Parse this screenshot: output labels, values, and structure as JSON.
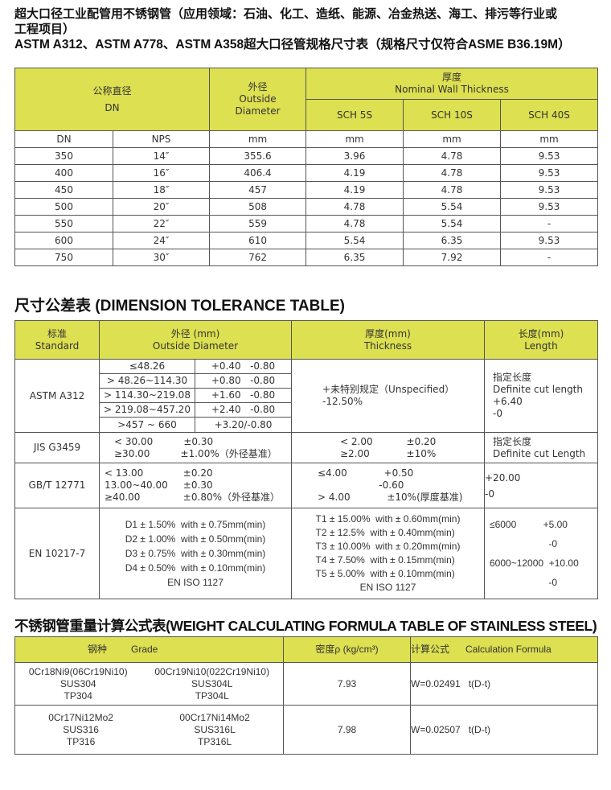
{
  "title": {
    "line1": "超大口径工业配管用不锈钢管（应用领域：石油、化工、造纸、能源、冶金热送、海工、排污等行业或",
    "line2": "工程项目）",
    "line3": "ASTM A312、ASTM A778、ASTM A358超大口径管规格尺寸表（规格尺寸仅符合ASME B36.19M）"
  },
  "colors": {
    "header_bg": "#dde050"
  },
  "spec_table": {
    "h_dn_cn": "公称直径",
    "h_dn": "DN",
    "h_od_cn": "外径",
    "h_od1": "Outside",
    "h_od2": "Diameter",
    "h_wall_cn": "厚度",
    "h_wall": "Nominal Wall Thickness",
    "sch": [
      "SCH 5S",
      "SCH 10S",
      "SCH 40S"
    ],
    "units": [
      "DN",
      "NPS",
      "mm",
      "mm",
      "mm",
      "mm"
    ],
    "rows": [
      [
        "350",
        "14″",
        "355.6",
        "3.96",
        "4.78",
        "9.53"
      ],
      [
        "400",
        "16″",
        "406.4",
        "4.19",
        "4.78",
        "9.53"
      ],
      [
        "450",
        "18″",
        "457",
        "4.19",
        "4.78",
        "9.53"
      ],
      [
        "500",
        "20″",
        "508",
        "4.78",
        "5.54",
        "9.53"
      ],
      [
        "550",
        "22″",
        "559",
        "4.78",
        "5.54",
        "-"
      ],
      [
        "600",
        "24″",
        "610",
        "5.54",
        "6.35",
        "9.53"
      ],
      [
        "750",
        "30″",
        "762",
        "6.35",
        "7.92",
        "-"
      ]
    ]
  },
  "tol": {
    "title": "尺寸公差表 (DIMENSION TOLERANCE TABLE)",
    "h": [
      [
        "标准",
        "Standard"
      ],
      [
        "外径 (mm)",
        "Outside Diameter"
      ],
      [
        "厚度(mm)",
        "Thickness"
      ],
      [
        "长度(mm)",
        "Length"
      ]
    ],
    "astm": {
      "name": "ASTM A312",
      "od": [
        [
          "≤48.26",
          "+0.40   -0.80"
        ],
        [
          "> 48.26~114.30",
          "+0.80   -0.80"
        ],
        [
          "> 114.30~219.08",
          "+1.60   -0.80"
        ],
        [
          "> 219.08~457.20",
          "+2.40   -0.80"
        ]
      ],
      "od_last": ">457 ~ 660",
      "od_last_tol": "+3.20/-0.80",
      "thk": "+未特别规定（Unspecified）\n-12.50%",
      "len": "指定长度\nDefinite cut length\n+6.40\n-0"
    },
    "jis": {
      "name": "JIS  G3459",
      "od": "< 30.00          ±0.30\n≥30.00          ±1.00%（外径基准）",
      "thk": "< 2.00           ±0.20\n≥2.00            ±10%",
      "len": "指定长度\nDefinite cut Length"
    },
    "gb": {
      "name": "GB/T  12771",
      "od": "< 13.00             ±0.20\n13.00~40.00     ±0.30\n≥40.00              ±0.80%（外径基准）",
      "thk": "≤4.00            +0.50\n                    -0.60\n> 4.00            ±10%(厚度基准)",
      "len": "+20.00\n-0"
    },
    "en": {
      "name": "EN  10217-7",
      "od": "D1 ± 1.50%  with ± 0.75mm(min)\nD2 ± 1.00%  with ± 0.50mm(min)\nD3 ± 0.75%  with ± 0.30mm(min)\nD4 ± 0.50%  with ± 0.10mm(min)",
      "od_std": "EN ISO 1127",
      "thk": "T1 ± 15.00%  with ± 0.60mm(min)\nT2 ± 12.5%  with ± 0.40mm(min)\nT3 ± 10.00%  with ± 0.20mm(min)\nT4 ± 7.50%  with ± 0.15mm(min)\nT5 ± 5.00%  with ± 0.10mm(min)",
      "thk_std": "EN ISO 1127",
      "len": "≤6000          +5.00\n\n                      -0\n\n6000~12000  +10.00\n\n                      -0"
    }
  },
  "weight": {
    "title": "不锈钢管重量计算公式表(WEIGHT CALCULATING FORMULA TABLE OF STAINLESS STEEL)",
    "h_grade": "钢种         Grade",
    "h_density": "密度ρ (kg/cm³)",
    "h_formula": "计算公式      Calculation Formula",
    "rows": [
      {
        "g1": "0Cr18Ni9(06Cr19Ni10)\nSUS304\nTP304",
        "g2": "00Cr19Ni10(022Cr19Ni10)\nSUS304L\nTP304L",
        "density": "7.93",
        "formula": "W=0.02491   t(D-t)"
      },
      {
        "g1": "0Cr17Ni12Mo2\nSUS316\nTP316",
        "g2": "00Cr17Ni14Mo2\nSUS316L\nTP316L",
        "density": "7.98",
        "formula": "W=0.02507   t(D-t)"
      }
    ]
  }
}
